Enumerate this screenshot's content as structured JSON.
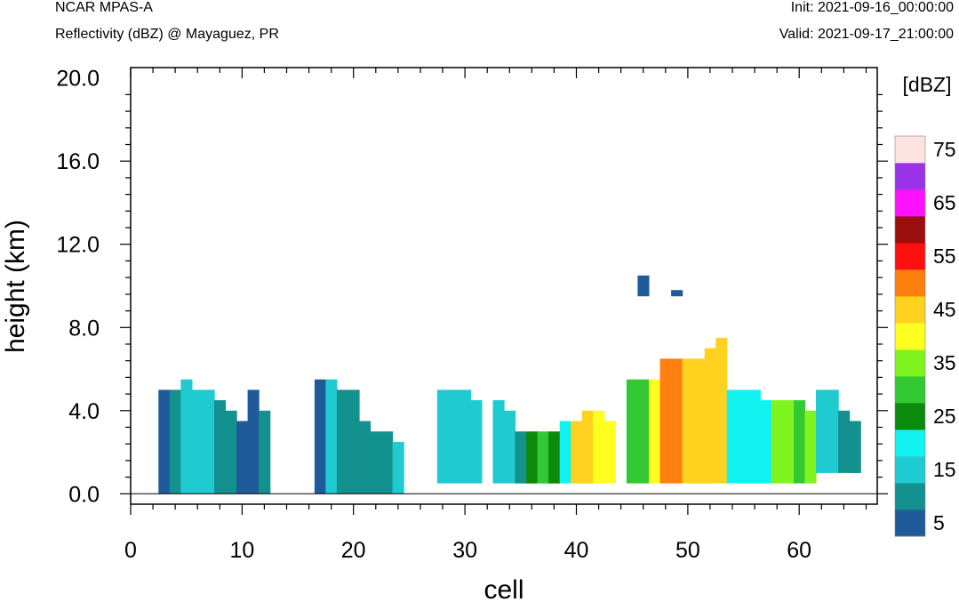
{
  "header": {
    "model": "NCAR MPAS-A",
    "field": "Reflectivity (dBZ) @ Mayaguez, PR",
    "init": "Init: 2021-09-16_00:00:00",
    "valid": "Valid: 2021-09-17_21:00:00"
  },
  "chart_data": {
    "type": "heatmap",
    "title": "Reflectivity (dBZ) @ Mayaguez, PR",
    "xlabel": "cell",
    "ylabel": "height (km)",
    "xlim": [
      0,
      67
    ],
    "ylim": [
      -0.5,
      20.5
    ],
    "x_ticks": [
      "0",
      "10",
      "20",
      "30",
      "40",
      "50",
      "60"
    ],
    "y_ticks": [
      "0.0",
      "4.0",
      "8.0",
      "12.0",
      "16.0",
      "20.0"
    ],
    "x_tick_values": [
      0,
      10,
      20,
      30,
      40,
      50,
      60
    ],
    "y_tick_values": [
      0,
      4,
      8,
      12,
      16,
      20
    ],
    "colorbar": {
      "unit": "[dBZ]",
      "levels": [
        5,
        10,
        15,
        20,
        25,
        30,
        35,
        40,
        45,
        50,
        55,
        60,
        65,
        70,
        75
      ],
      "labels": [
        "5",
        "15",
        "25",
        "35",
        "45",
        "55",
        "65",
        "75"
      ],
      "colors": [
        "#1f5b9a",
        "#12918f",
        "#1fcbd0",
        "#12f2f0",
        "#0b8a0b",
        "#33c933",
        "#80f41f",
        "#ffff20",
        "#ffd21f",
        "#ff800f",
        "#ff1010",
        "#9a0e0e",
        "#ff10ff",
        "#9a32e8",
        "#fde3df"
      ]
    },
    "cells": [
      [
        3,
        0,
        1.0,
        5.0,
        5
      ],
      [
        4,
        0,
        1.0,
        5.0,
        10
      ],
      [
        5,
        0,
        1.0,
        5.5,
        15
      ],
      [
        6,
        0,
        1.0,
        5.0,
        15
      ],
      [
        7,
        0,
        1.0,
        5.0,
        15
      ],
      [
        8,
        0,
        1.0,
        4.5,
        10
      ],
      [
        9,
        0,
        1.0,
        4.0,
        10
      ],
      [
        10,
        0,
        1.0,
        3.5,
        5
      ],
      [
        11,
        0,
        1.0,
        5.0,
        5
      ],
      [
        12,
        0,
        1.0,
        4.0,
        10
      ],
      [
        17,
        0,
        1.0,
        5.5,
        5
      ],
      [
        18,
        0,
        1.0,
        5.5,
        15
      ],
      [
        19,
        0,
        1.0,
        5.0,
        10
      ],
      [
        20,
        0,
        1.0,
        5.0,
        10
      ],
      [
        21,
        0,
        1.0,
        3.5,
        10
      ],
      [
        22,
        0,
        1.0,
        3.0,
        10
      ],
      [
        23,
        0,
        1.0,
        3.0,
        10
      ],
      [
        24,
        0,
        1.0,
        2.5,
        15
      ],
      [
        28,
        0.5,
        1.0,
        5.0,
        15
      ],
      [
        29,
        0.5,
        1.0,
        5.0,
        15
      ],
      [
        30,
        0.5,
        1.0,
        5.0,
        15
      ],
      [
        31,
        0.5,
        1.0,
        4.5,
        15
      ],
      [
        33,
        0.5,
        1.0,
        4.5,
        15
      ],
      [
        34,
        0.5,
        1.0,
        4.0,
        15
      ],
      [
        35,
        0.5,
        1.0,
        3.0,
        10
      ],
      [
        36,
        0.5,
        1.0,
        3.0,
        25
      ],
      [
        37,
        0.5,
        1.0,
        3.0,
        30
      ],
      [
        38,
        0.5,
        1.0,
        3.0,
        25
      ],
      [
        39,
        0.5,
        1.0,
        3.5,
        20
      ],
      [
        40,
        0.5,
        1.0,
        3.5,
        45
      ],
      [
        41,
        0.5,
        1.0,
        4.0,
        45
      ],
      [
        42,
        0.5,
        1.0,
        4.0,
        40
      ],
      [
        43,
        0.5,
        1.0,
        3.5,
        40
      ],
      [
        45,
        0.5,
        1.0,
        5.5,
        30
      ],
      [
        46,
        0.5,
        1.0,
        5.5,
        30
      ],
      [
        47,
        0.5,
        1.0,
        5.5,
        40
      ],
      [
        48,
        0.5,
        1.0,
        6.5,
        50
      ],
      [
        49,
        0.5,
        1.0,
        6.5,
        50
      ],
      [
        50,
        0.5,
        1.0,
        6.5,
        45
      ],
      [
        51,
        0.5,
        1.0,
        6.5,
        45
      ],
      [
        52,
        0.5,
        1.0,
        7.0,
        45
      ],
      [
        53,
        0.5,
        1.0,
        7.5,
        45
      ],
      [
        54,
        0.5,
        1.0,
        5.0,
        20
      ],
      [
        55,
        0.5,
        1.0,
        5.0,
        20
      ],
      [
        56,
        0.5,
        1.0,
        5.0,
        20
      ],
      [
        57,
        0.5,
        1.0,
        4.5,
        20
      ],
      [
        58,
        0.5,
        1.0,
        4.5,
        35
      ],
      [
        59,
        0.5,
        1.0,
        4.5,
        35
      ],
      [
        60,
        0.5,
        1.0,
        4.5,
        30
      ],
      [
        61,
        0.5,
        1.0,
        4.0,
        35
      ],
      [
        62,
        1.0,
        1.0,
        5.0,
        15
      ],
      [
        63,
        1.0,
        1.0,
        5.0,
        15
      ],
      [
        64,
        1.0,
        1.0,
        4.0,
        10
      ],
      [
        65,
        1.0,
        1.0,
        3.5,
        10
      ],
      [
        46,
        9.5,
        1.0,
        10.5,
        5
      ],
      [
        49,
        9.5,
        1.0,
        9.8,
        5
      ]
    ]
  }
}
